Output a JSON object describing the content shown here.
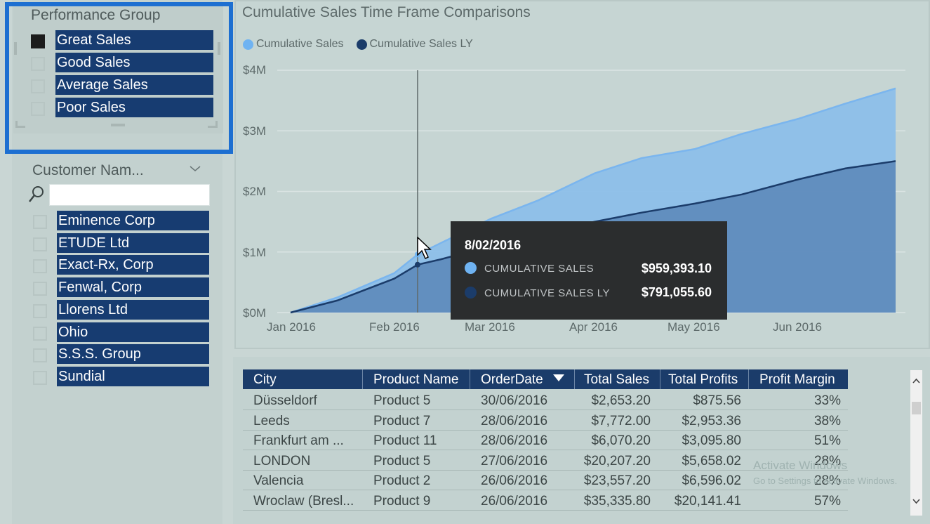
{
  "performance_group": {
    "title": "Performance Group",
    "items": [
      {
        "label": "Great Sales",
        "checked": true
      },
      {
        "label": "Good Sales",
        "checked": false
      },
      {
        "label": "Average Sales",
        "checked": false
      },
      {
        "label": "Poor Sales",
        "checked": false
      }
    ]
  },
  "customer": {
    "title": "Customer Nam...",
    "search_value": "",
    "items": [
      "Eminence Corp",
      "ETUDE Ltd",
      "Exact-Rx, Corp",
      "Fenwal, Corp",
      "Llorens Ltd",
      "Ohio",
      "S.S.S. Group",
      "Sundial"
    ]
  },
  "chart": {
    "title": "Cumulative Sales Time Frame Comparisons",
    "legend": [
      {
        "name": "Cumulative Sales",
        "color": "#6fb3f2"
      },
      {
        "name": "Cumulative Sales LY",
        "color": "#1b3c6a"
      }
    ],
    "y_ticks": [
      "$4M",
      "$3M",
      "$2M",
      "$1M",
      "$0M"
    ],
    "x_ticks": [
      "Jan 2016",
      "Feb 2016",
      "Mar 2016",
      "Apr 2016",
      "May 2016",
      "Jun 2016"
    ]
  },
  "chart_data": {
    "type": "area",
    "title": "Cumulative Sales Time Frame Comparisons",
    "xlabel": "",
    "ylabel": "",
    "ylim": [
      0,
      4000000
    ],
    "x": [
      "2016-01-01",
      "2016-01-15",
      "2016-02-01",
      "2016-02-08",
      "2016-02-15",
      "2016-03-01",
      "2016-03-15",
      "2016-04-01",
      "2016-04-15",
      "2016-05-01",
      "2016-05-15",
      "2016-06-01",
      "2016-06-15",
      "2016-06-30"
    ],
    "series": [
      {
        "name": "Cumulative Sales",
        "values": [
          0,
          250000,
          650000,
          959393,
          1150000,
          1550000,
          1850000,
          2300000,
          2550000,
          2700000,
          2950000,
          3200000,
          3450000,
          3700000
        ]
      },
      {
        "name": "Cumulative Sales LY",
        "values": [
          0,
          200000,
          560000,
          791056,
          880000,
          1100000,
          1300000,
          1500000,
          1650000,
          1800000,
          1950000,
          2200000,
          2380000,
          2500000
        ]
      }
    ],
    "grid": true,
    "legend_position": "top-left"
  },
  "tooltip": {
    "date": "8/02/2016",
    "rows": [
      {
        "label": "CUMULATIVE SALES",
        "value": "$959,393.10",
        "color": "#6fb3f2"
      },
      {
        "label": "CUMULATIVE SALES LY",
        "value": "$791,055.60",
        "color": "#1b3c6a"
      }
    ]
  },
  "table": {
    "headers": [
      "City",
      "Product Name",
      "OrderDate",
      "Total Sales",
      "Total Profits",
      "Profit Margin"
    ],
    "sorted_column": "OrderDate",
    "rows": [
      [
        "Düsseldorf",
        "Product 5",
        "30/06/2016",
        "$2,653.20",
        "$875.56",
        "33%"
      ],
      [
        "Leeds",
        "Product 7",
        "28/06/2016",
        "$7,772.00",
        "$2,953.36",
        "38%"
      ],
      [
        "Frankfurt am ...",
        "Product 11",
        "28/06/2016",
        "$6,070.20",
        "$3,095.80",
        "51%"
      ],
      [
        "LONDON",
        "Product 5",
        "27/06/2016",
        "$20,207.20",
        "$5,658.02",
        "28%"
      ],
      [
        "Valencia",
        "Product 2",
        "26/06/2016",
        "$23,557.20",
        "$6,596.02",
        "28%"
      ],
      [
        "Wroclaw (Bresl...",
        "Product 9",
        "26/06/2016",
        "$35,335.80",
        "$20,141.41",
        "57%"
      ]
    ]
  },
  "watermark": {
    "line1": "Activate Windows",
    "line2": "Go to Settings to activate Windows."
  }
}
